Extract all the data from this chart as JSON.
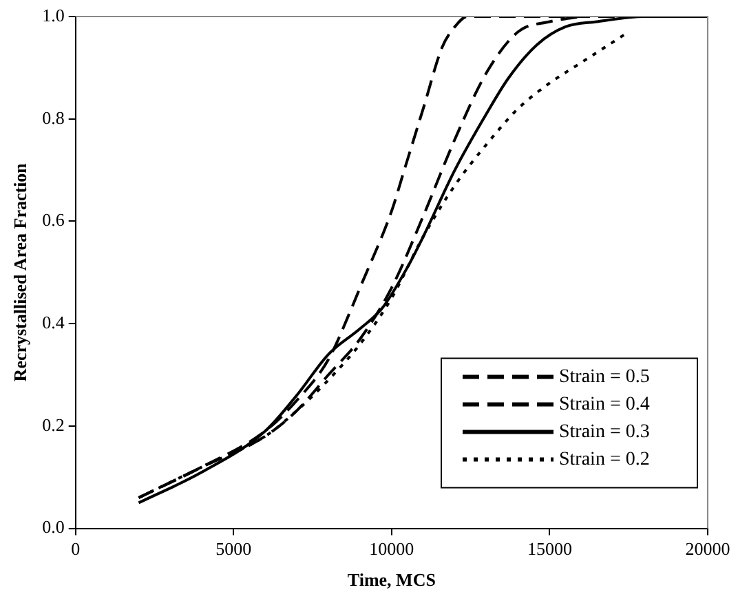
{
  "chart_data": {
    "type": "line",
    "xlabel": "Time, MCS",
    "ylabel": "Recrystallised Area Fraction",
    "xlim": [
      0,
      20000
    ],
    "xticks": [
      0,
      5000,
      10000,
      15000,
      20000
    ],
    "ylim": [
      0,
      1
    ],
    "yticks": [
      {
        "value": 0,
        "label": "0.0"
      },
      {
        "value": 0.2,
        "label": "0.2"
      },
      {
        "value": 0.4,
        "label": "0.4"
      },
      {
        "value": 0.6,
        "label": "0.6"
      },
      {
        "value": 0.8,
        "label": "0.8"
      },
      {
        "value": 1,
        "label": "1.0"
      }
    ],
    "grid": false,
    "legend": "bottom right",
    "marker": "none",
    "series": [
      {
        "name": "Strain = 0.5",
        "color": "#000000",
        "line_style": "dashed",
        "x": [
          2000,
          4000,
          6000,
          7000,
          8000,
          8800,
          9000,
          10000,
          10400,
          11000,
          11600,
          12000,
          12400,
          20000
        ],
        "values": [
          0.06,
          0.12,
          0.19,
          0.25,
          0.33,
          0.44,
          0.47,
          0.62,
          0.7,
          0.82,
          0.94,
          0.98,
          1.0,
          1.0
        ]
      },
      {
        "name": "Strain = 0.4",
        "color": "#000000",
        "line_style": "dashed",
        "x": [
          2000,
          4000,
          6000,
          7000,
          8000,
          9000,
          10000,
          11000,
          12000,
          13000,
          14000,
          15000,
          16000
        ],
        "values": [
          0.06,
          0.12,
          0.18,
          0.23,
          0.3,
          0.37,
          0.47,
          0.61,
          0.76,
          0.89,
          0.97,
          0.99,
          1.0
        ]
      },
      {
        "name": "Strain = 0.3",
        "color": "#000000",
        "line_style": "solid",
        "x": [
          2000,
          4000,
          6000,
          7000,
          8000,
          9000,
          9700,
          10500,
          11000,
          12000,
          13000,
          13700,
          14600,
          15500,
          16500,
          18000,
          20000
        ],
        "values": [
          0.05,
          0.11,
          0.19,
          0.26,
          0.34,
          0.39,
          0.43,
          0.51,
          0.57,
          0.7,
          0.81,
          0.88,
          0.945,
          0.98,
          0.99,
          1.0,
          1.0
        ]
      },
      {
        "name": "Strain = 0.2",
        "color": "#000000",
        "line_style": "dotted",
        "x": [
          2000,
          4000,
          6000,
          7000,
          8000,
          9000,
          10000,
          11000,
          12000,
          13000,
          14000,
          15000,
          16000,
          17500
        ],
        "values": [
          0.06,
          0.12,
          0.18,
          0.23,
          0.29,
          0.36,
          0.45,
          0.57,
          0.67,
          0.75,
          0.82,
          0.87,
          0.91,
          0.97
        ]
      }
    ]
  }
}
